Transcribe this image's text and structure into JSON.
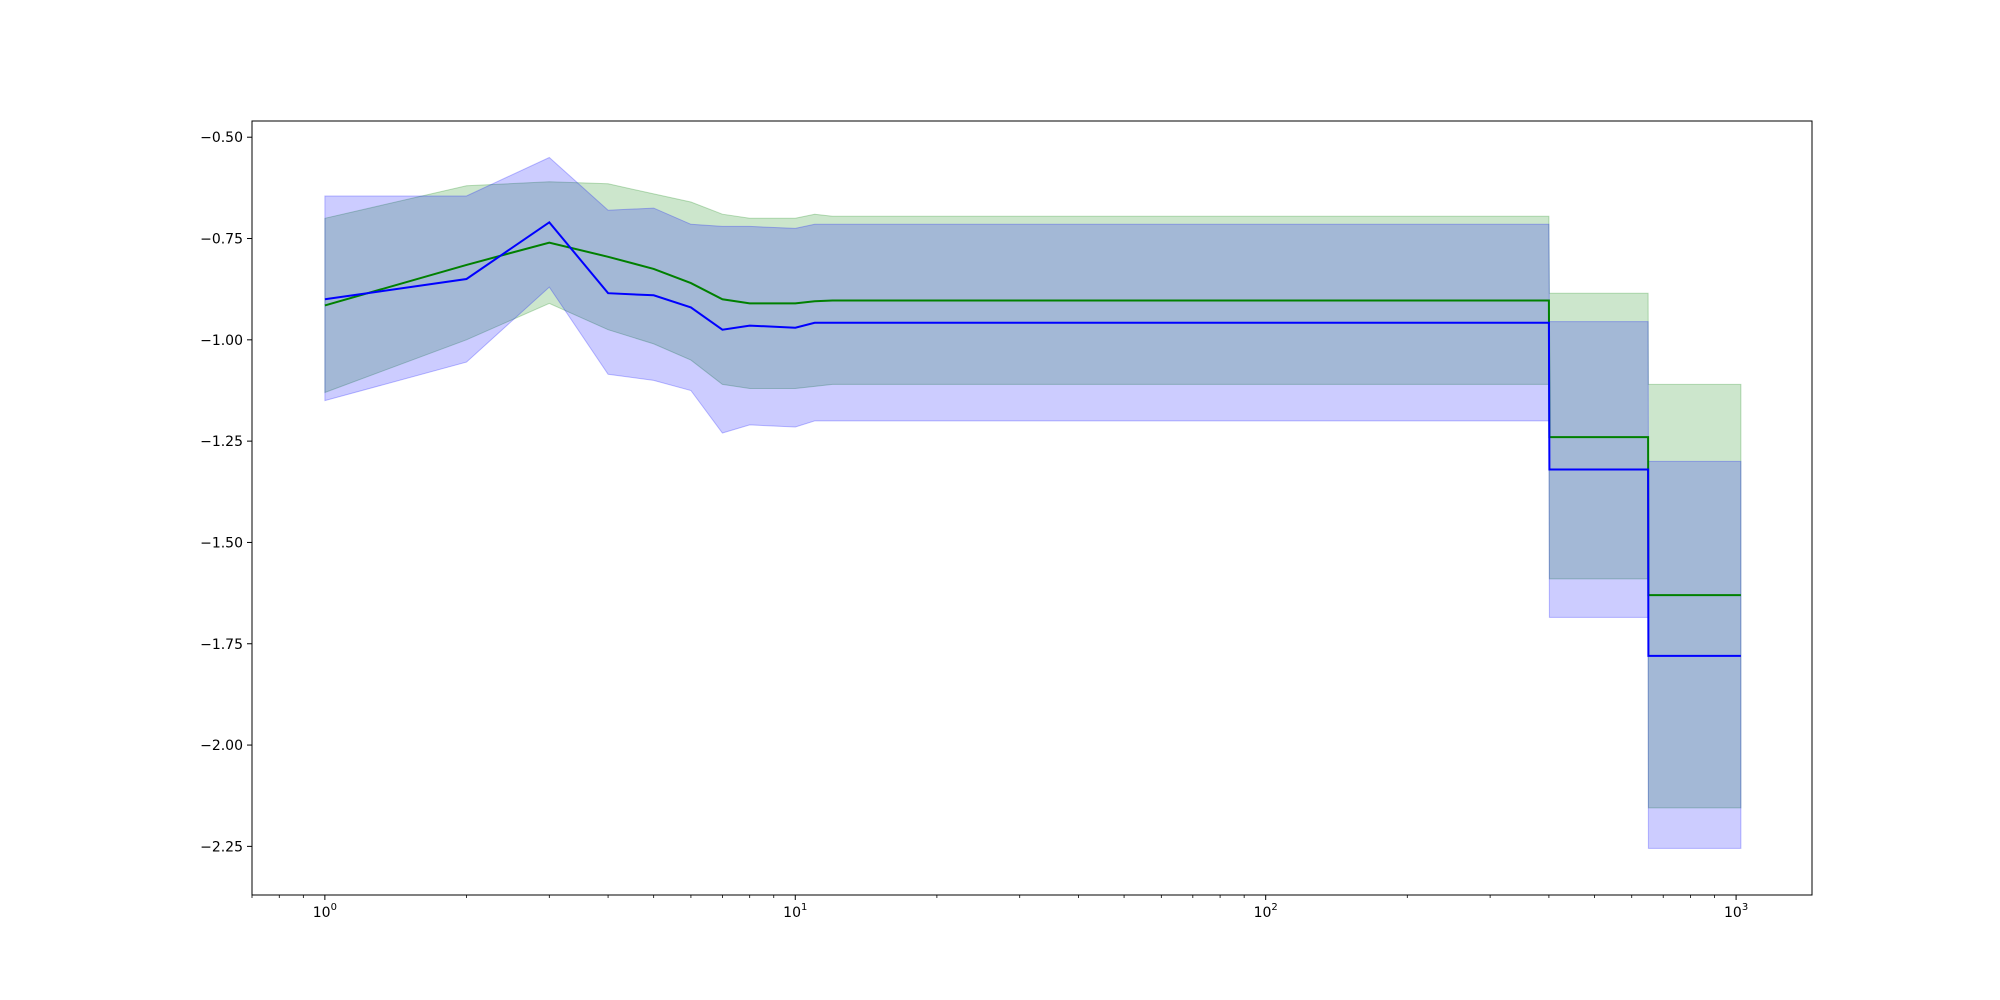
{
  "chart_data": {
    "type": "line",
    "title": "",
    "xlabel": "",
    "ylabel": "",
    "xscale": "log",
    "xlim": [
      0.7,
      1450
    ],
    "ylim": [
      -2.37,
      -0.46
    ],
    "grid": false,
    "legend": "none",
    "x_ticks": [
      {
        "value": 1,
        "base": "10",
        "exp": "0"
      },
      {
        "value": 10,
        "base": "10",
        "exp": "1"
      },
      {
        "value": 100,
        "base": "10",
        "exp": "2"
      },
      {
        "value": 1000,
        "base": "10",
        "exp": "3"
      }
    ],
    "y_ticks": [
      {
        "value": -0.5,
        "label": "−0.50"
      },
      {
        "value": -0.75,
        "label": "−0.75"
      },
      {
        "value": -1.0,
        "label": "−1.00"
      },
      {
        "value": -1.25,
        "label": "−1.25"
      },
      {
        "value": -1.5,
        "label": "−1.50"
      },
      {
        "value": -1.75,
        "label": "−1.75"
      },
      {
        "value": -2.0,
        "label": "−2.00"
      },
      {
        "value": -2.25,
        "label": "−2.25"
      }
    ],
    "series": [
      {
        "color": "#008000",
        "band_color": "#008000",
        "points": [
          [
            1,
            -0.915,
            -1.13,
            -0.7
          ],
          [
            2,
            -0.815,
            -1.0,
            -0.62
          ],
          [
            3,
            -0.76,
            -0.91,
            -0.61
          ],
          [
            4,
            -0.795,
            -0.975,
            -0.615
          ],
          [
            5,
            -0.825,
            -1.01,
            -0.64
          ],
          [
            6,
            -0.86,
            -1.05,
            -0.66
          ],
          [
            7,
            -0.9,
            -1.11,
            -0.69
          ],
          [
            8,
            -0.91,
            -1.12,
            -0.7
          ],
          [
            10,
            -0.91,
            -1.12,
            -0.7
          ],
          [
            11,
            -0.905,
            -1.115,
            -0.69
          ],
          [
            12,
            -0.903,
            -1.11,
            -0.695
          ],
          [
            400,
            -0.903,
            -1.11,
            -0.695
          ],
          [
            401,
            -1.24,
            -1.59,
            -0.885
          ],
          [
            650,
            -1.24,
            -1.59,
            -0.885
          ],
          [
            651,
            -1.63,
            -2.155,
            -1.11
          ],
          [
            1024,
            -1.63,
            -2.155,
            -1.11
          ]
        ]
      },
      {
        "color": "#0000ff",
        "band_color": "#0000ff",
        "points": [
          [
            1,
            -0.9,
            -1.15,
            -0.645
          ],
          [
            2,
            -0.85,
            -1.055,
            -0.645
          ],
          [
            3,
            -0.71,
            -0.87,
            -0.55
          ],
          [
            4,
            -0.885,
            -1.085,
            -0.68
          ],
          [
            5,
            -0.89,
            -1.1,
            -0.675
          ],
          [
            6,
            -0.92,
            -1.125,
            -0.715
          ],
          [
            7,
            -0.975,
            -1.23,
            -0.72
          ],
          [
            8,
            -0.965,
            -1.21,
            -0.72
          ],
          [
            10,
            -0.97,
            -1.215,
            -0.725
          ],
          [
            11,
            -0.958,
            -1.2,
            -0.715
          ],
          [
            400,
            -0.958,
            -1.2,
            -0.715
          ],
          [
            401,
            -1.32,
            -1.685,
            -0.955
          ],
          [
            650,
            -1.32,
            -1.685,
            -0.955
          ],
          [
            651,
            -1.78,
            -2.255,
            -1.3
          ],
          [
            1024,
            -1.78,
            -2.255,
            -1.3
          ]
        ]
      }
    ]
  }
}
